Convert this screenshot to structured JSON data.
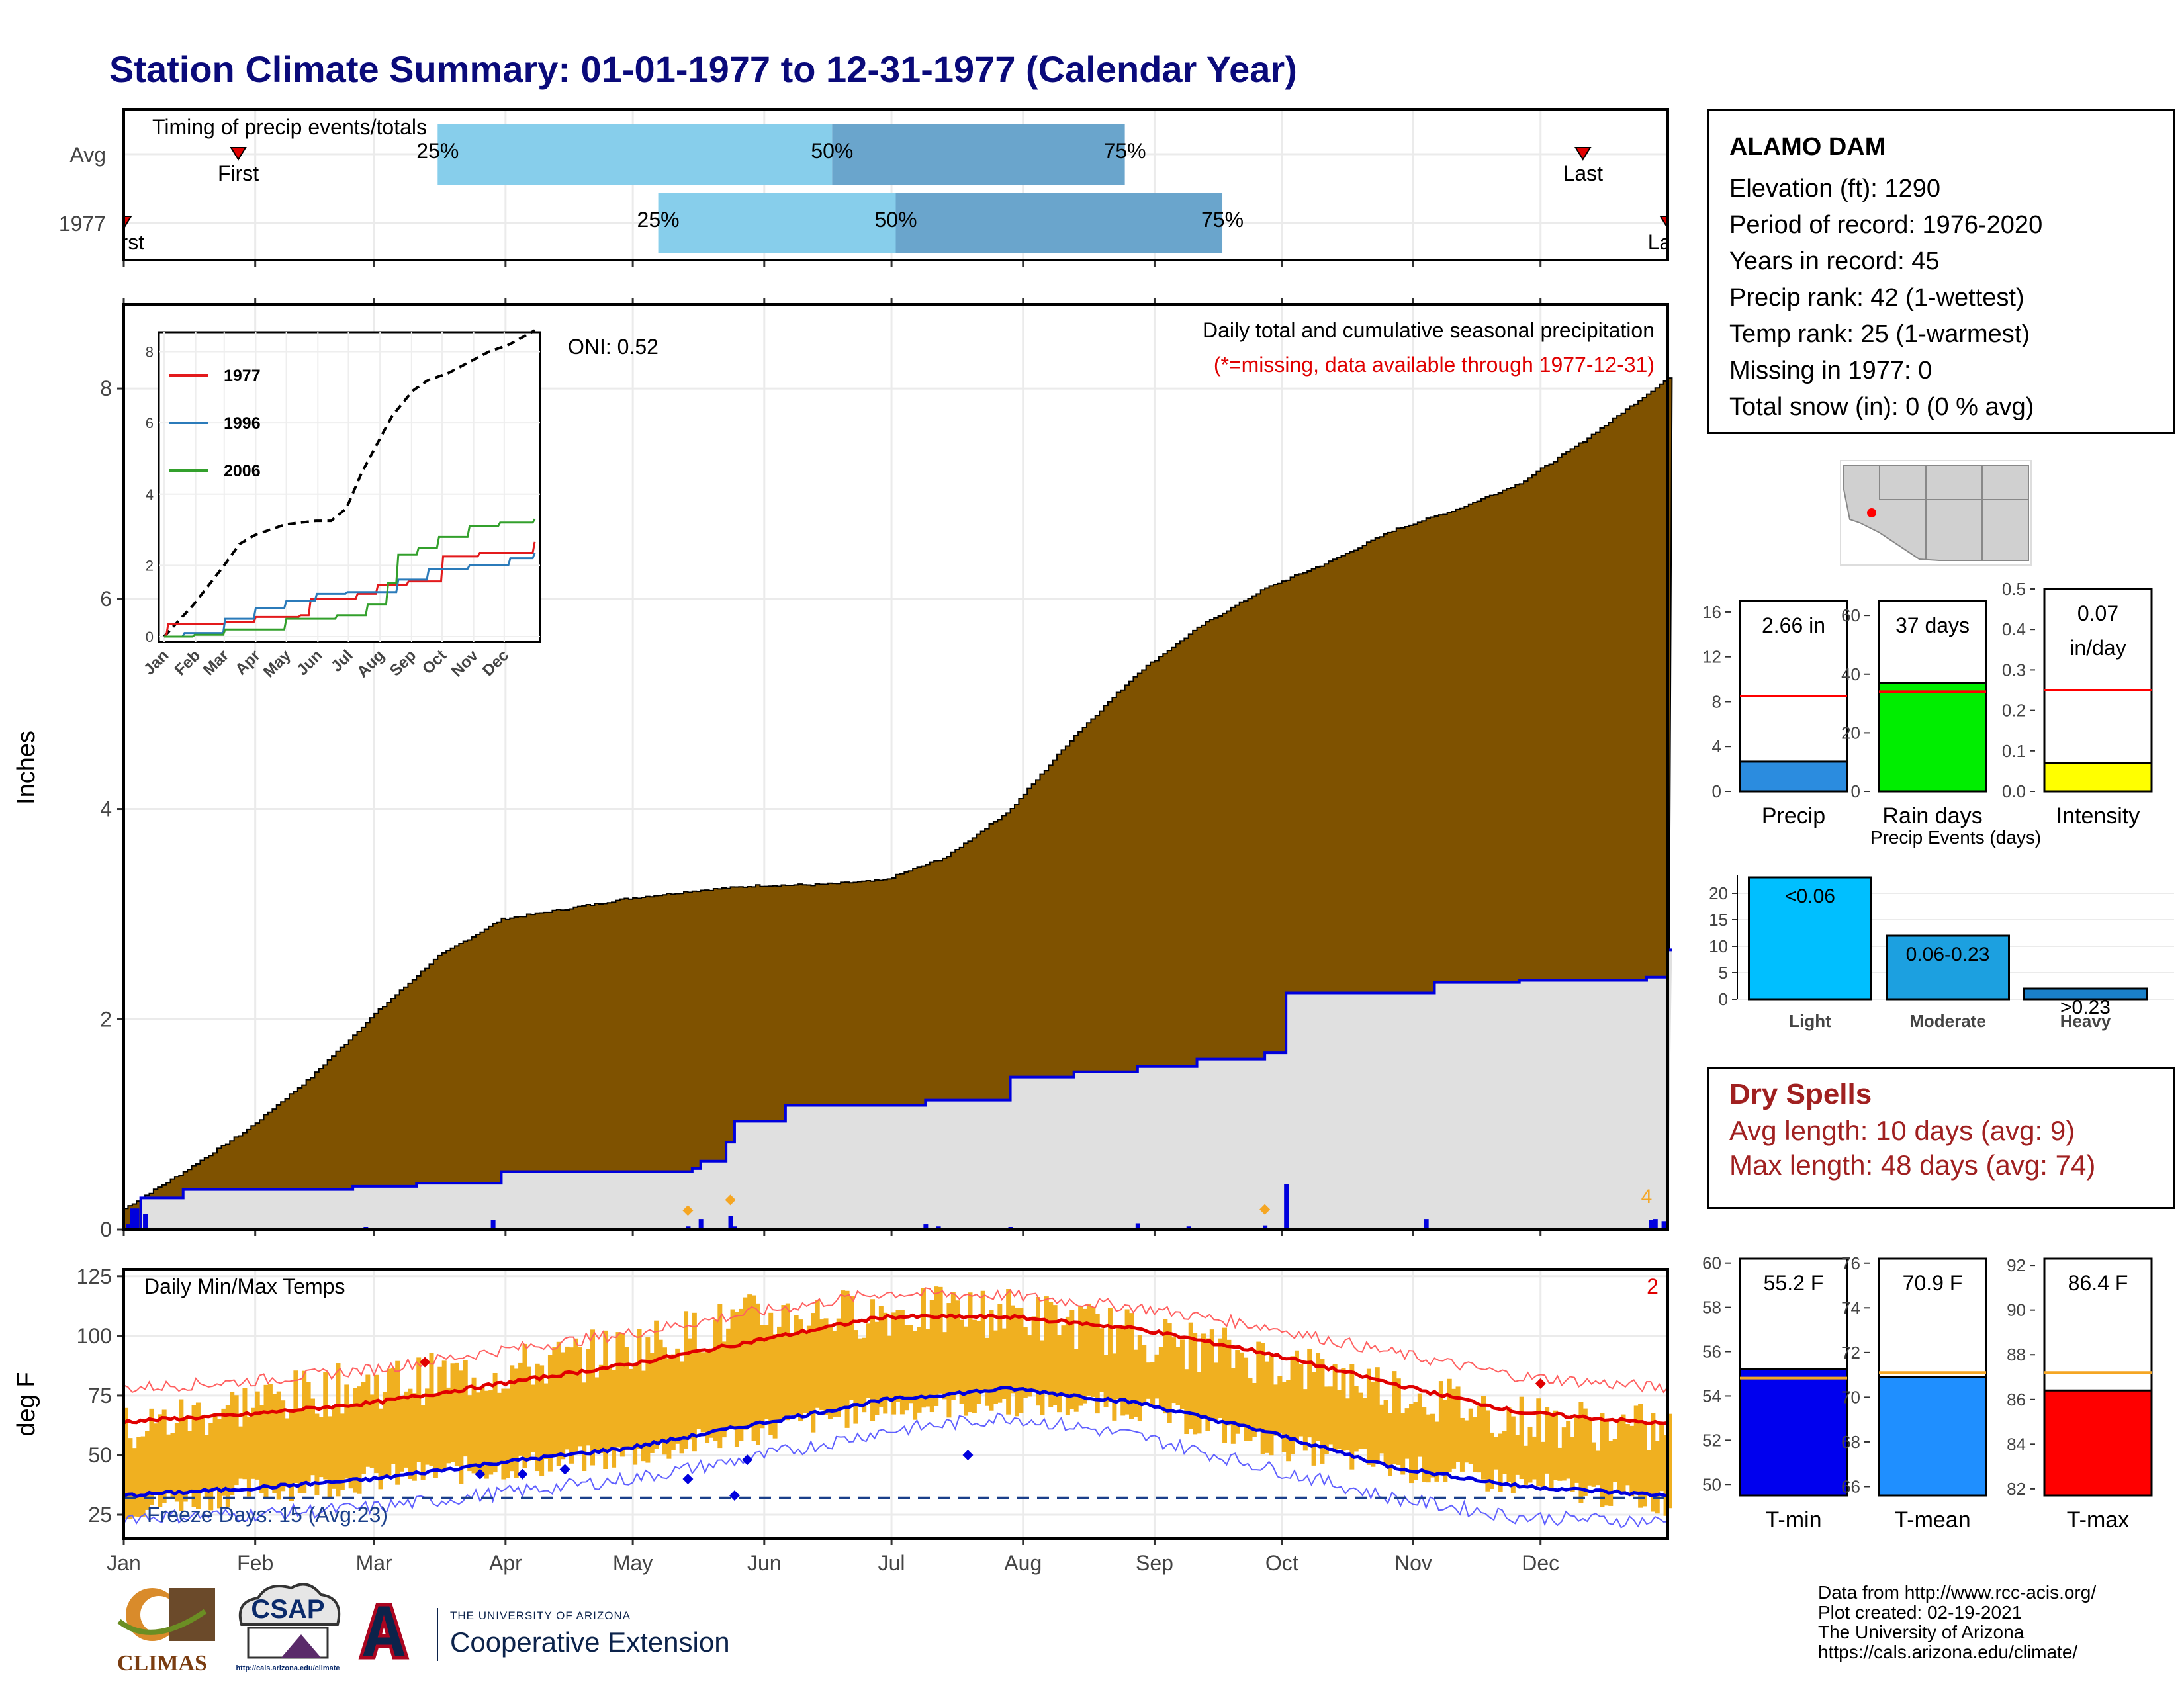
{
  "title": "Station Climate Summary: 01-01-1977 to 12-31-1977 (Calendar Year)",
  "timing": {
    "label": "Timing of precip events/totals",
    "rows": [
      {
        "name": "Avg",
        "first_label": "First",
        "last_label": "Last",
        "first_doy": 28,
        "last_doy": 345,
        "p25": 75,
        "p50": 168,
        "p75": 237
      },
      {
        "name": "1977",
        "first_label": "First",
        "last_label": "Last",
        "first_doy": 1,
        "last_doy": 365,
        "p25": 127,
        "p50": 183,
        "p75": 260
      }
    ],
    "pct_labels": [
      "25%",
      "50%",
      "75%"
    ],
    "colors": {
      "light": "#87ceeb",
      "dark": "#6aa5cc",
      "marker": "#e00000"
    }
  },
  "precip_panel": {
    "title": "Daily total and cumulative seasonal precipitation",
    "subtitle": "(*=missing, data available through 1977-12-31)",
    "oni": "ONI: 0.52",
    "ylabel": "Inches",
    "corner_count": "4",
    "colors": {
      "cum_avg": "#7f5200",
      "cum_year": "#e0e0e0",
      "year_line": "#0000dd",
      "daily_bar": "#0000dd",
      "extreme": "#f5a623"
    }
  },
  "inset": {
    "legend": [
      "1977",
      "1996",
      "2006"
    ],
    "colors": [
      "#e31a1c",
      "#2b7bba",
      "#33a02c"
    ],
    "months": [
      "Jan",
      "Feb",
      "Mar",
      "Apr",
      "May",
      "Jun",
      "Jul",
      "Aug",
      "Sep",
      "Oct",
      "Nov",
      "Dec"
    ]
  },
  "temp_panel": {
    "title": "Daily Min/Max Temps",
    "ylabel": "deg F",
    "freeze_label": "Freeze Days: 15 (Avg:23)",
    "corner_count": "2",
    "colors": {
      "bar": "#f0b020",
      "tmax": "#e00000",
      "tmin": "#0000dd",
      "freeze": "#1a3f8a"
    }
  },
  "months": [
    "Jan",
    "Feb",
    "Mar",
    "Apr",
    "May",
    "Jun",
    "Jul",
    "Aug",
    "Sep",
    "Oct",
    "Nov",
    "Dec"
  ],
  "station": {
    "name": "ALAMO DAM",
    "lines": [
      "Elevation (ft): 1290",
      "Period of record: 1976-2020",
      "Years in record: 45",
      "Precip rank: 42 (1-wettest)",
      "Temp rank: 25 (1-warmest)",
      "Missing in 1977: 0",
      "Total snow (in): 0 (0 % avg)"
    ]
  },
  "dry_spells": {
    "title": "Dry Spells",
    "avg_line": "Avg length: 10 days (avg: 9)",
    "max_line": "Max length: 48 days (avg: 74)"
  },
  "credits": [
    "Data from http://www.rcc-acis.org/",
    "Plot created: 02-19-2021",
    "The University of Arizona",
    "https://cals.arizona.edu/climate/"
  ],
  "logos": {
    "climas": "CLIMAS",
    "csap": "CSAP",
    "csap_url": "http://cals.arizona.edu/climate",
    "ua_small": "THE UNIVERSITY OF ARIZONA",
    "coop": "Cooperative Extension"
  },
  "chart_data": [
    {
      "type": "line",
      "title": "Daily total and cumulative seasonal precipitation",
      "ylabel": "Inches",
      "xlabel": "",
      "ylim": [
        0,
        8.8
      ],
      "x_ticks": [
        "Jan",
        "Feb",
        "Mar",
        "Apr",
        "May",
        "Jun",
        "Jul",
        "Aug",
        "Sep",
        "Oct",
        "Nov",
        "Dec"
      ],
      "series": [
        {
          "name": "",
          "x_doy": [
            1,
            15,
            30,
            45,
            60,
            75,
            90,
            105,
            120,
            135,
            150,
            165,
            180,
            195,
            210,
            225,
            240,
            255,
            270,
            285,
            300,
            315,
            330,
            345,
            365
          ],
          "values": [
            0.2,
            0.55,
            0.95,
            1.45,
            2.05,
            2.6,
            2.95,
            3.05,
            3.15,
            3.22,
            3.27,
            3.28,
            3.32,
            3.55,
            4.0,
            4.7,
            5.3,
            5.75,
            6.1,
            6.35,
            6.65,
            6.85,
            7.1,
            7.5,
            8.1
          ]
        },
        {
          "name": "1977",
          "x_doy": [
            1,
            5,
            15,
            55,
            70,
            90,
            135,
            137,
            143,
            145,
            157,
            163,
            190,
            210,
            225,
            240,
            254,
            270,
            275,
            310,
            330,
            360,
            365
          ],
          "values": [
            0.0,
            0.3,
            0.38,
            0.41,
            0.44,
            0.55,
            0.58,
            0.65,
            0.83,
            1.03,
            1.18,
            1.18,
            1.23,
            1.45,
            1.5,
            1.55,
            1.62,
            1.68,
            2.25,
            2.35,
            2.37,
            2.4,
            2.66
          ]
        }
      ],
      "daily_precip_events": [
        {
          "doy": 2,
          "value": 0.05
        },
        {
          "doy": 3,
          "value": 0.2
        },
        {
          "doy": 4,
          "value": 0.2
        },
        {
          "doy": 6,
          "value": 0.15
        },
        {
          "doy": 58,
          "value": 0.02
        },
        {
          "doy": 88,
          "value": 0.09
        },
        {
          "doy": 134,
          "value": 0.03
        },
        {
          "doy": 137,
          "value": 0.1
        },
        {
          "doy": 144,
          "value": 0.13
        },
        {
          "doy": 145,
          "value": 0.03
        },
        {
          "doy": 190,
          "value": 0.05
        },
        {
          "doy": 193,
          "value": 0.03
        },
        {
          "doy": 210,
          "value": 0.02
        },
        {
          "doy": 240,
          "value": 0.06
        },
        {
          "doy": 252,
          "value": 0.03
        },
        {
          "doy": 270,
          "value": 0.04
        },
        {
          "doy": 275,
          "value": 0.43
        },
        {
          "doy": 308,
          "value": 0.1
        },
        {
          "doy": 361,
          "value": 0.09
        },
        {
          "doy": 362,
          "value": 0.1
        },
        {
          "doy": 364,
          "value": 0.08
        }
      ],
      "extreme_markers_doy": [
        134,
        144,
        270
      ]
    },
    {
      "type": "line",
      "title": "",
      "ylim": [
        0,
        8.4
      ],
      "x_ticks": [
        "Jan",
        "Feb",
        "Mar",
        "Apr",
        "May",
        "Jun",
        "Jul",
        "Aug",
        "Sep",
        "Oct",
        "Nov",
        "Dec"
      ],
      "series": [
        {
          "name": "",
          "style": "dashed",
          "x_doy": [
            1,
            30,
            60,
            75,
            90,
            120,
            150,
            165,
            180,
            195,
            210,
            225,
            245,
            260,
            280,
            300,
            320,
            340,
            365
          ],
          "values": [
            0.0,
            0.9,
            2.0,
            2.6,
            2.85,
            3.15,
            3.25,
            3.25,
            3.6,
            4.6,
            5.4,
            6.2,
            6.9,
            7.2,
            7.4,
            7.7,
            8.0,
            8.2,
            8.6
          ]
        },
        {
          "name": "1977",
          "x_doy": [
            1,
            5,
            60,
            90,
            135,
            145,
            190,
            210,
            240,
            275,
            310,
            365
          ],
          "values": [
            0.0,
            0.35,
            0.4,
            0.55,
            0.6,
            1.05,
            1.2,
            1.45,
            1.55,
            2.25,
            2.35,
            2.66
          ]
        },
        {
          "name": "1996",
          "x_doy": [
            1,
            20,
            60,
            90,
            120,
            150,
            180,
            210,
            230,
            260,
            300,
            340,
            365
          ],
          "values": [
            0.0,
            0.1,
            0.5,
            0.8,
            1.0,
            1.2,
            1.25,
            1.25,
            1.6,
            1.9,
            2.0,
            2.2,
            2.35
          ]
        },
        {
          "name": "2006",
          "x_doy": [
            1,
            30,
            60,
            120,
            170,
            200,
            220,
            230,
            250,
            270,
            300,
            330,
            365
          ],
          "values": [
            0.0,
            0.05,
            0.2,
            0.5,
            0.6,
            0.9,
            1.5,
            2.3,
            2.5,
            2.8,
            3.1,
            3.2,
            3.3
          ]
        }
      ]
    },
    {
      "type": "bar",
      "title": "Daily Min/Max Temps",
      "ylabel": "deg F",
      "ylim": [
        15,
        128
      ],
      "x_ticks": [
        "Jan",
        "Feb",
        "Mar",
        "Apr",
        "May",
        "Jun",
        "Jul",
        "Aug",
        "Sep",
        "Oct",
        "Nov",
        "Dec"
      ],
      "series": [
        {
          "name": "",
          "x_doy": [
            1,
            30,
            60,
            90,
            120,
            150,
            180,
            210,
            240,
            270,
            300,
            330,
            365
          ],
          "values": [
            64,
            67,
            72,
            80,
            88,
            98,
            108,
            108,
            103,
            93,
            80,
            68,
            63
          ]
        },
        {
          "name": "",
          "x_doy": [
            1,
            30,
            60,
            90,
            120,
            150,
            180,
            210,
            240,
            270,
            300,
            330,
            365
          ],
          "values": [
            33,
            36,
            40,
            47,
            53,
            63,
            73,
            78,
            72,
            60,
            45,
            37,
            33
          ]
        },
        {
          "name": "",
          "x_doy": [
            1,
            30,
            60,
            90,
            120,
            150,
            180,
            210,
            240,
            270,
            300,
            330,
            365
          ],
          "values": [
            78,
            81,
            86,
            94,
            101,
            110,
            118,
            117,
            112,
            104,
            93,
            83,
            78
          ]
        },
        {
          "name": "",
          "x_doy": [
            1,
            30,
            60,
            90,
            120,
            150,
            180,
            210,
            240,
            270,
            300,
            330,
            365
          ],
          "values": [
            24,
            25,
            28,
            34,
            40,
            49,
            60,
            66,
            58,
            45,
            32,
            24,
            22
          ]
        }
      ],
      "daily_range_bands": [
        {
          "x_doy": [
            1,
            30,
            60,
            90,
            120,
            150,
            180,
            210,
            240,
            270,
            300,
            330,
            365
          ],
          "tmax": [
            60,
            72,
            80,
            85,
            95,
            108,
            110,
            110,
            100,
            90,
            78,
            65,
            60
          ],
          "tmin": [
            28,
            35,
            40,
            45,
            50,
            60,
            70,
            72,
            70,
            55,
            45,
            38,
            30
          ]
        }
      ],
      "freeze_line": 32,
      "freeze_days": 15,
      "freeze_days_avg": 23
    },
    {
      "type": "bar",
      "categories": [
        "Precip"
      ],
      "values": [
        2.66
      ],
      "avg": 8.5,
      "ylim": [
        0,
        17
      ],
      "ticks": [
        0,
        4,
        8,
        12,
        16
      ],
      "label": "2.66 in",
      "color": "#2b8cdf"
    },
    {
      "type": "bar",
      "categories": [
        "Rain days"
      ],
      "values": [
        37
      ],
      "avg": 34,
      "ylim": [
        0,
        65
      ],
      "ticks": [
        0,
        20,
        40,
        60
      ],
      "label": "37 days",
      "color": "#00ee00"
    },
    {
      "type": "bar",
      "categories": [
        "Intensity"
      ],
      "values": [
        0.07
      ],
      "avg": 0.25,
      "ylim": [
        0,
        0.5
      ],
      "ticks": [
        0.0,
        0.1,
        0.2,
        0.3,
        0.4,
        0.5
      ],
      "label": "0.07",
      "label2": "in/day",
      "color": "#ffff00"
    },
    {
      "type": "bar",
      "title": "Precip Events (days)",
      "categories": [
        "Light",
        "Moderate",
        "Heavy"
      ],
      "values": [
        23,
        12,
        2
      ],
      "bar_labels": [
        "<0.06",
        "0.06-0.23",
        ">0.23"
      ],
      "ylim": [
        0,
        23.5
      ],
      "ticks": [
        0,
        5,
        10,
        15,
        20
      ],
      "colors": [
        "#00bfff",
        "#1ca0e0",
        "#1a80c8"
      ]
    },
    {
      "type": "bar",
      "categories": [
        "T-min"
      ],
      "values": [
        55.2
      ],
      "avg": 54.8,
      "ylim": [
        49.5,
        60.2
      ],
      "ticks": [
        50,
        52,
        54,
        56,
        58,
        60
      ],
      "label": "55.2 F",
      "color": "#0000ee"
    },
    {
      "type": "bar",
      "categories": [
        "T-mean"
      ],
      "values": [
        70.9
      ],
      "avg": 71.1,
      "ylim": [
        65.6,
        76.2
      ],
      "ticks": [
        66,
        68,
        70,
        72,
        74,
        76
      ],
      "label": "70.9 F",
      "color": "#1f8fff"
    },
    {
      "type": "bar",
      "categories": [
        "T-max"
      ],
      "values": [
        86.4
      ],
      "avg": 87.2,
      "ylim": [
        81.7,
        92.3
      ],
      "ticks": [
        82,
        84,
        86,
        88,
        90,
        92
      ],
      "label": "86.4 F",
      "color": "#ff0000"
    }
  ]
}
